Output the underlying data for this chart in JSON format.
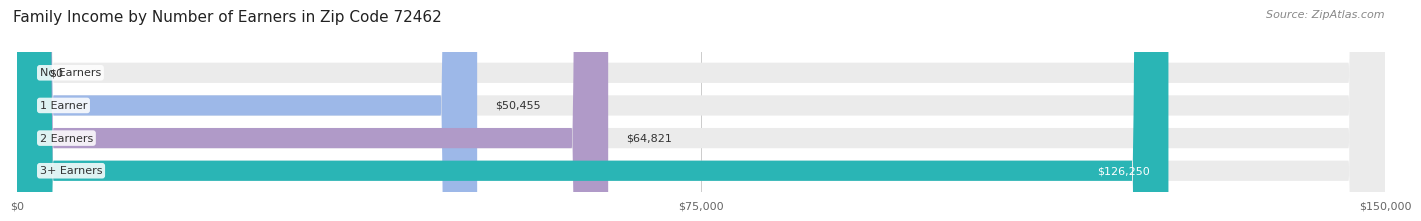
{
  "title": "Family Income by Number of Earners in Zip Code 72462",
  "source": "Source: ZipAtlas.com",
  "categories": [
    "No Earners",
    "1 Earner",
    "2 Earners",
    "3+ Earners"
  ],
  "values": [
    0,
    50455,
    64821,
    126250
  ],
  "bar_colors": [
    "#f08080",
    "#9db8e8",
    "#b09ac8",
    "#2ab5b5"
  ],
  "bar_bg_color": "#ebebeb",
  "label_colors": [
    "#333333",
    "#333333",
    "#333333",
    "#ffffff"
  ],
  "value_labels": [
    "$0",
    "$50,455",
    "$64,821",
    "$126,250"
  ],
  "xlim": [
    0,
    150000
  ],
  "xticks": [
    0,
    75000,
    150000
  ],
  "xtick_labels": [
    "$0",
    "$75,000",
    "$150,000"
  ],
  "background_color": "#ffffff",
  "title_fontsize": 11,
  "source_fontsize": 8,
  "label_fontsize": 8,
  "value_fontsize": 8,
  "tick_fontsize": 8
}
